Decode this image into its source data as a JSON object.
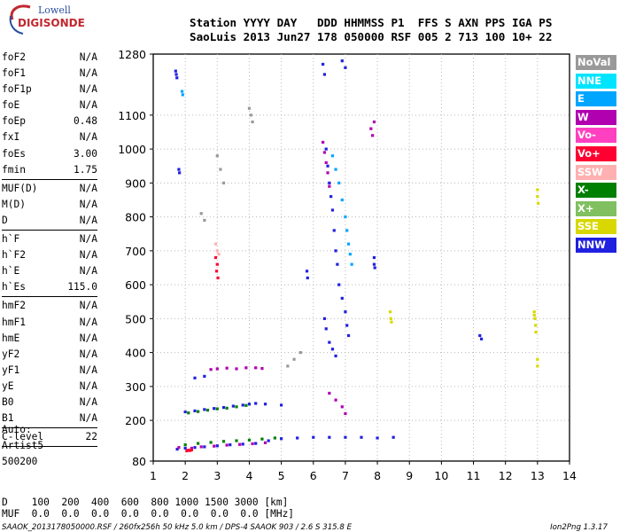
{
  "logo": {
    "line1": "Lowell",
    "line2": "DIGISONDE"
  },
  "header": {
    "line1": "Station YYYY DAY   DDD HHMMSS P1  FFS S AXN PPS IGA PS",
    "line2": "SaoLuis 2013 Jun27 178 050000 RSF 005 2 713 100 10+ 22"
  },
  "params": [
    {
      "name": "foF2",
      "value": "N/A"
    },
    {
      "name": "foF1",
      "value": "N/A"
    },
    {
      "name": "foF1p",
      "value": "N/A"
    },
    {
      "name": "foE",
      "value": "N/A"
    },
    {
      "name": "foEp",
      "value": "0.48"
    },
    {
      "name": "fxI",
      "value": "N/A"
    },
    {
      "name": "foEs",
      "value": "3.00"
    },
    {
      "name": "fmin",
      "value": "1.75"
    },
    {
      "sep": true
    },
    {
      "name": "MUF(D)",
      "value": "N/A"
    },
    {
      "name": "M(D)",
      "value": "N/A"
    },
    {
      "name": "D",
      "value": "N/A"
    },
    {
      "sep": true
    },
    {
      "name": "h`F",
      "value": "N/A"
    },
    {
      "name": "h`F2",
      "value": "N/A"
    },
    {
      "name": "h`E",
      "value": "N/A"
    },
    {
      "name": "h`Es",
      "value": "115.0"
    },
    {
      "sep": true
    },
    {
      "name": "hmF2",
      "value": "N/A"
    },
    {
      "name": "hmF1",
      "value": "N/A"
    },
    {
      "name": "hmE",
      "value": "N/A"
    },
    {
      "name": "yF2",
      "value": "N/A"
    },
    {
      "name": "yF1",
      "value": "N/A"
    },
    {
      "name": "yE",
      "value": "N/A"
    },
    {
      "name": "B0",
      "value": "N/A"
    },
    {
      "name": "B1",
      "value": "N/A"
    },
    {
      "sep": true
    },
    {
      "name": "C-level",
      "value": "22"
    },
    {
      "sep": true
    }
  ],
  "auto": {
    "line1": "Auto:",
    "line2": "Artist5",
    "line3": "500200"
  },
  "bottom": {
    "d_line": "D    100  200  400  600  800 1000 1500 3000 [km]",
    "muf_line": "MUF  0.0  0.0  0.0  0.0  0.0  0.0  0.0  0.0 [MHz]"
  },
  "footer": {
    "left": "SAAOK_2013178050000.RSF / 260fx256h 50 kHz 5.0 km / DPS-4 SAAOK 903 / 2.6 S 315.8 E",
    "right": "Ion2Png 1.3.17"
  },
  "legend": [
    {
      "label": "NoVal",
      "color": "#999999"
    },
    {
      "label": "NNE",
      "color": "#00e5ff"
    },
    {
      "label": "E",
      "color": "#00a5ff"
    },
    {
      "label": "W",
      "color": "#b000b0"
    },
    {
      "label": "Vo-",
      "color": "#ff40c0"
    },
    {
      "label": "Vo+",
      "color": "#ff0030"
    },
    {
      "label": "SSW",
      "color": "#ffb0b0"
    },
    {
      "label": "X-",
      "color": "#008000"
    },
    {
      "label": "X+",
      "color": "#80c060"
    },
    {
      "label": "SSE",
      "color": "#d8d800"
    },
    {
      "label": "NNW",
      "color": "#2020e0"
    }
  ],
  "chart_data": {
    "type": "scatter",
    "title": "",
    "xlabel": "",
    "ylabel": "",
    "xlim": [
      1,
      14
    ],
    "ylim": [
      80,
      1280
    ],
    "x_ticks": [
      1,
      2,
      3,
      4,
      5,
      6,
      7,
      8,
      9,
      10,
      11,
      12,
      13,
      14
    ],
    "y_ticks": [
      80,
      200,
      300,
      400,
      500,
      600,
      700,
      800,
      900,
      1000,
      1100,
      1280
    ],
    "grid": true,
    "legend_position": "right",
    "traces": [
      {
        "color": "#2020e0",
        "points": [
          [
            1.75,
            115
          ],
          [
            2.0,
            118
          ],
          [
            2.3,
            120
          ],
          [
            2.6,
            122
          ],
          [
            3.0,
            125
          ],
          [
            3.4,
            128
          ],
          [
            3.8,
            130
          ],
          [
            4.2,
            132
          ],
          [
            4.6,
            140
          ],
          [
            5.0,
            146
          ],
          [
            5.5,
            148
          ],
          [
            6.0,
            150
          ],
          [
            6.5,
            150
          ],
          [
            7.0,
            150
          ],
          [
            7.5,
            150
          ],
          [
            8.0,
            148
          ],
          [
            8.5,
            150
          ]
        ]
      },
      {
        "color": "#b000b0",
        "points": [
          [
            1.8,
            120
          ],
          [
            2.2,
            118
          ],
          [
            2.5,
            122
          ],
          [
            2.9,
            124
          ],
          [
            3.3,
            127
          ],
          [
            3.7,
            129
          ],
          [
            4.1,
            131
          ],
          [
            4.5,
            134
          ]
        ]
      },
      {
        "color": "#008000",
        "points": [
          [
            2.0,
            128
          ],
          [
            2.4,
            132
          ],
          [
            2.8,
            135
          ],
          [
            3.2,
            138
          ],
          [
            3.6,
            140
          ],
          [
            4.0,
            142
          ],
          [
            4.4,
            145
          ],
          [
            4.8,
            148
          ]
        ]
      },
      {
        "color": "#ff0030",
        "points": [
          [
            2.05,
            110
          ],
          [
            2.1,
            112
          ],
          [
            2.15,
            111
          ],
          [
            2.2,
            113
          ]
        ]
      },
      {
        "color": "#2020e0",
        "points": [
          [
            2.0,
            225
          ],
          [
            2.3,
            228
          ],
          [
            2.6,
            232
          ],
          [
            2.9,
            235
          ],
          [
            3.2,
            238
          ],
          [
            3.5,
            242
          ],
          [
            3.8,
            245
          ],
          [
            4.0,
            248
          ],
          [
            4.2,
            250
          ],
          [
            4.5,
            248
          ],
          [
            5.0,
            245
          ]
        ]
      },
      {
        "color": "#008000",
        "points": [
          [
            2.1,
            222
          ],
          [
            2.4,
            226
          ],
          [
            2.7,
            230
          ],
          [
            3.0,
            234
          ],
          [
            3.3,
            236
          ],
          [
            3.6,
            240
          ],
          [
            3.9,
            244
          ]
        ]
      },
      {
        "color": "#b000b0",
        "points": [
          [
            2.8,
            350
          ],
          [
            3.0,
            352
          ],
          [
            3.3,
            354
          ],
          [
            3.6,
            352
          ],
          [
            3.9,
            355
          ],
          [
            4.2,
            355
          ],
          [
            4.4,
            353
          ]
        ]
      },
      {
        "color": "#2020e0",
        "points": [
          [
            2.3,
            325
          ],
          [
            2.6,
            330
          ]
        ]
      },
      {
        "color": "#2020e0",
        "points": [
          [
            6.4,
            1000
          ],
          [
            6.45,
            950
          ],
          [
            6.5,
            900
          ],
          [
            6.55,
            860
          ],
          [
            6.6,
            820
          ],
          [
            6.65,
            760
          ],
          [
            6.7,
            700
          ],
          [
            6.75,
            660
          ],
          [
            6.8,
            600
          ],
          [
            6.9,
            560
          ],
          [
            7.0,
            520
          ],
          [
            7.05,
            480
          ],
          [
            7.1,
            450
          ]
        ]
      },
      {
        "color": "#00a5ff",
        "points": [
          [
            6.6,
            980
          ],
          [
            6.7,
            940
          ],
          [
            6.8,
            900
          ],
          [
            6.9,
            850
          ],
          [
            7.0,
            800
          ],
          [
            7.05,
            760
          ],
          [
            7.1,
            720
          ],
          [
            7.15,
            690
          ],
          [
            7.2,
            660
          ]
        ]
      },
      {
        "color": "#b000b0",
        "points": [
          [
            6.3,
            1020
          ],
          [
            6.35,
            990
          ],
          [
            6.4,
            960
          ],
          [
            6.45,
            930
          ],
          [
            6.5,
            890
          ]
        ]
      },
      {
        "color": "#2020e0",
        "points": [
          [
            6.3,
            1250
          ],
          [
            6.35,
            1220
          ],
          [
            6.9,
            1260
          ],
          [
            7.0,
            1240
          ]
        ]
      },
      {
        "color": "#2020e0",
        "points": [
          [
            6.35,
            500
          ],
          [
            6.4,
            470
          ],
          [
            6.5,
            430
          ],
          [
            6.6,
            410
          ],
          [
            6.7,
            390
          ]
        ]
      },
      {
        "color": "#b000b0",
        "points": [
          [
            6.5,
            280
          ],
          [
            6.7,
            260
          ],
          [
            6.9,
            240
          ],
          [
            7.0,
            220
          ]
        ]
      },
      {
        "color": "#d8d800",
        "points": [
          [
            12.9,
            520
          ],
          [
            12.9,
            510
          ],
          [
            12.92,
            500
          ],
          [
            12.94,
            480
          ],
          [
            12.95,
            460
          ]
        ]
      },
      {
        "color": "#d8d800",
        "points": [
          [
            13.0,
            880
          ],
          [
            13.0,
            860
          ],
          [
            13.02,
            840
          ]
        ]
      },
      {
        "color": "#d8d800",
        "points": [
          [
            13.0,
            380
          ],
          [
            13.0,
            360
          ]
        ]
      },
      {
        "color": "#d8d800",
        "points": [
          [
            8.4,
            520
          ],
          [
            8.42,
            500
          ],
          [
            8.44,
            490
          ]
        ]
      },
      {
        "color": "#b000b0",
        "points": [
          [
            7.8,
            1060
          ],
          [
            7.85,
            1040
          ],
          [
            7.9,
            1080
          ]
        ]
      },
      {
        "color": "#2020e0",
        "points": [
          [
            7.9,
            680
          ],
          [
            7.9,
            660
          ],
          [
            7.92,
            650
          ]
        ]
      },
      {
        "color": "#2020e0",
        "points": [
          [
            5.8,
            640
          ],
          [
            5.82,
            620
          ]
        ]
      },
      {
        "color": "#2020e0",
        "points": [
          [
            1.7,
            1230
          ],
          [
            1.72,
            1220
          ],
          [
            1.74,
            1210
          ]
        ]
      },
      {
        "color": "#2020e0",
        "points": [
          [
            1.8,
            940
          ],
          [
            1.82,
            930
          ]
        ]
      },
      {
        "color": "#2020e0",
        "points": [
          [
            11.2,
            450
          ],
          [
            11.25,
            440
          ]
        ]
      },
      {
        "color": "#00a5ff",
        "points": [
          [
            1.9,
            1170
          ],
          [
            1.92,
            1160
          ]
        ]
      },
      {
        "color": "#ff0030",
        "points": [
          [
            2.95,
            680
          ],
          [
            3.0,
            660
          ],
          [
            2.98,
            640
          ],
          [
            3.02,
            620
          ]
        ]
      },
      {
        "color": "#ffb0b0",
        "points": [
          [
            2.95,
            720
          ],
          [
            3.0,
            700
          ],
          [
            3.05,
            690
          ]
        ]
      },
      {
        "color": "#999999",
        "points": [
          [
            4.0,
            1120
          ],
          [
            4.05,
            1100
          ],
          [
            4.1,
            1080
          ],
          [
            3.0,
            980
          ],
          [
            3.1,
            940
          ],
          [
            3.2,
            900
          ],
          [
            2.5,
            810
          ],
          [
            2.6,
            790
          ],
          [
            5.2,
            360
          ],
          [
            5.4,
            380
          ],
          [
            5.6,
            400
          ]
        ]
      }
    ]
  }
}
